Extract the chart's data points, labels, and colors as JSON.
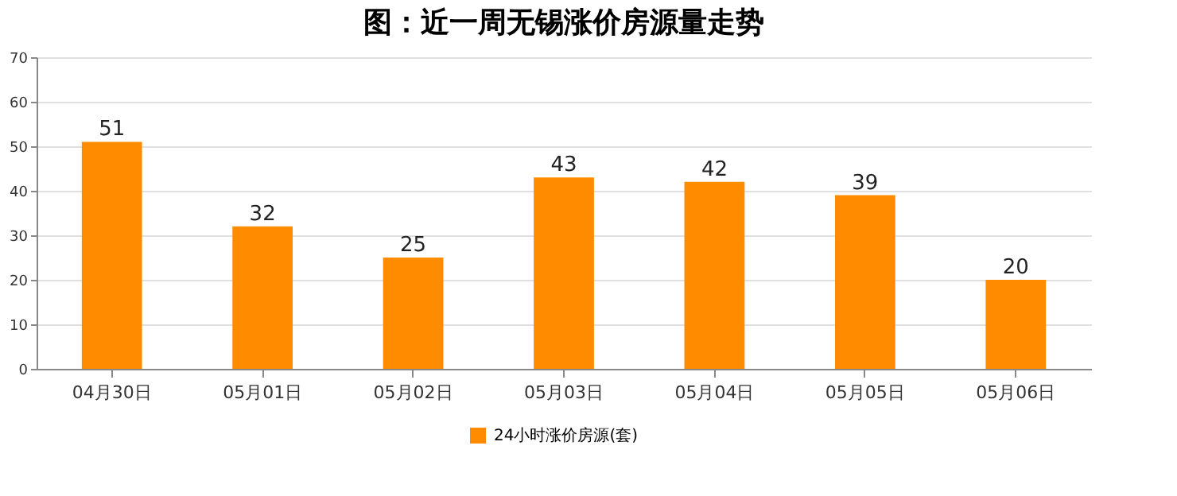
{
  "chart_data": {
    "type": "bar",
    "title": "图：近一周无锡涨价房源量走势",
    "categories": [
      "04月30日",
      "05月01日",
      "05月02日",
      "05月03日",
      "05月04日",
      "05月05日",
      "05月06日"
    ],
    "series": [
      {
        "name": "24小时涨价房源(套)",
        "color": "#ff8c00",
        "values": [
          51,
          32,
          25,
          43,
          42,
          39,
          20
        ]
      }
    ],
    "ylim": [
      0,
      70
    ],
    "yticks": [
      0,
      10,
      20,
      30,
      40,
      50,
      60,
      70
    ],
    "grid": "y",
    "legend": "bottom",
    "data_labels": true
  }
}
